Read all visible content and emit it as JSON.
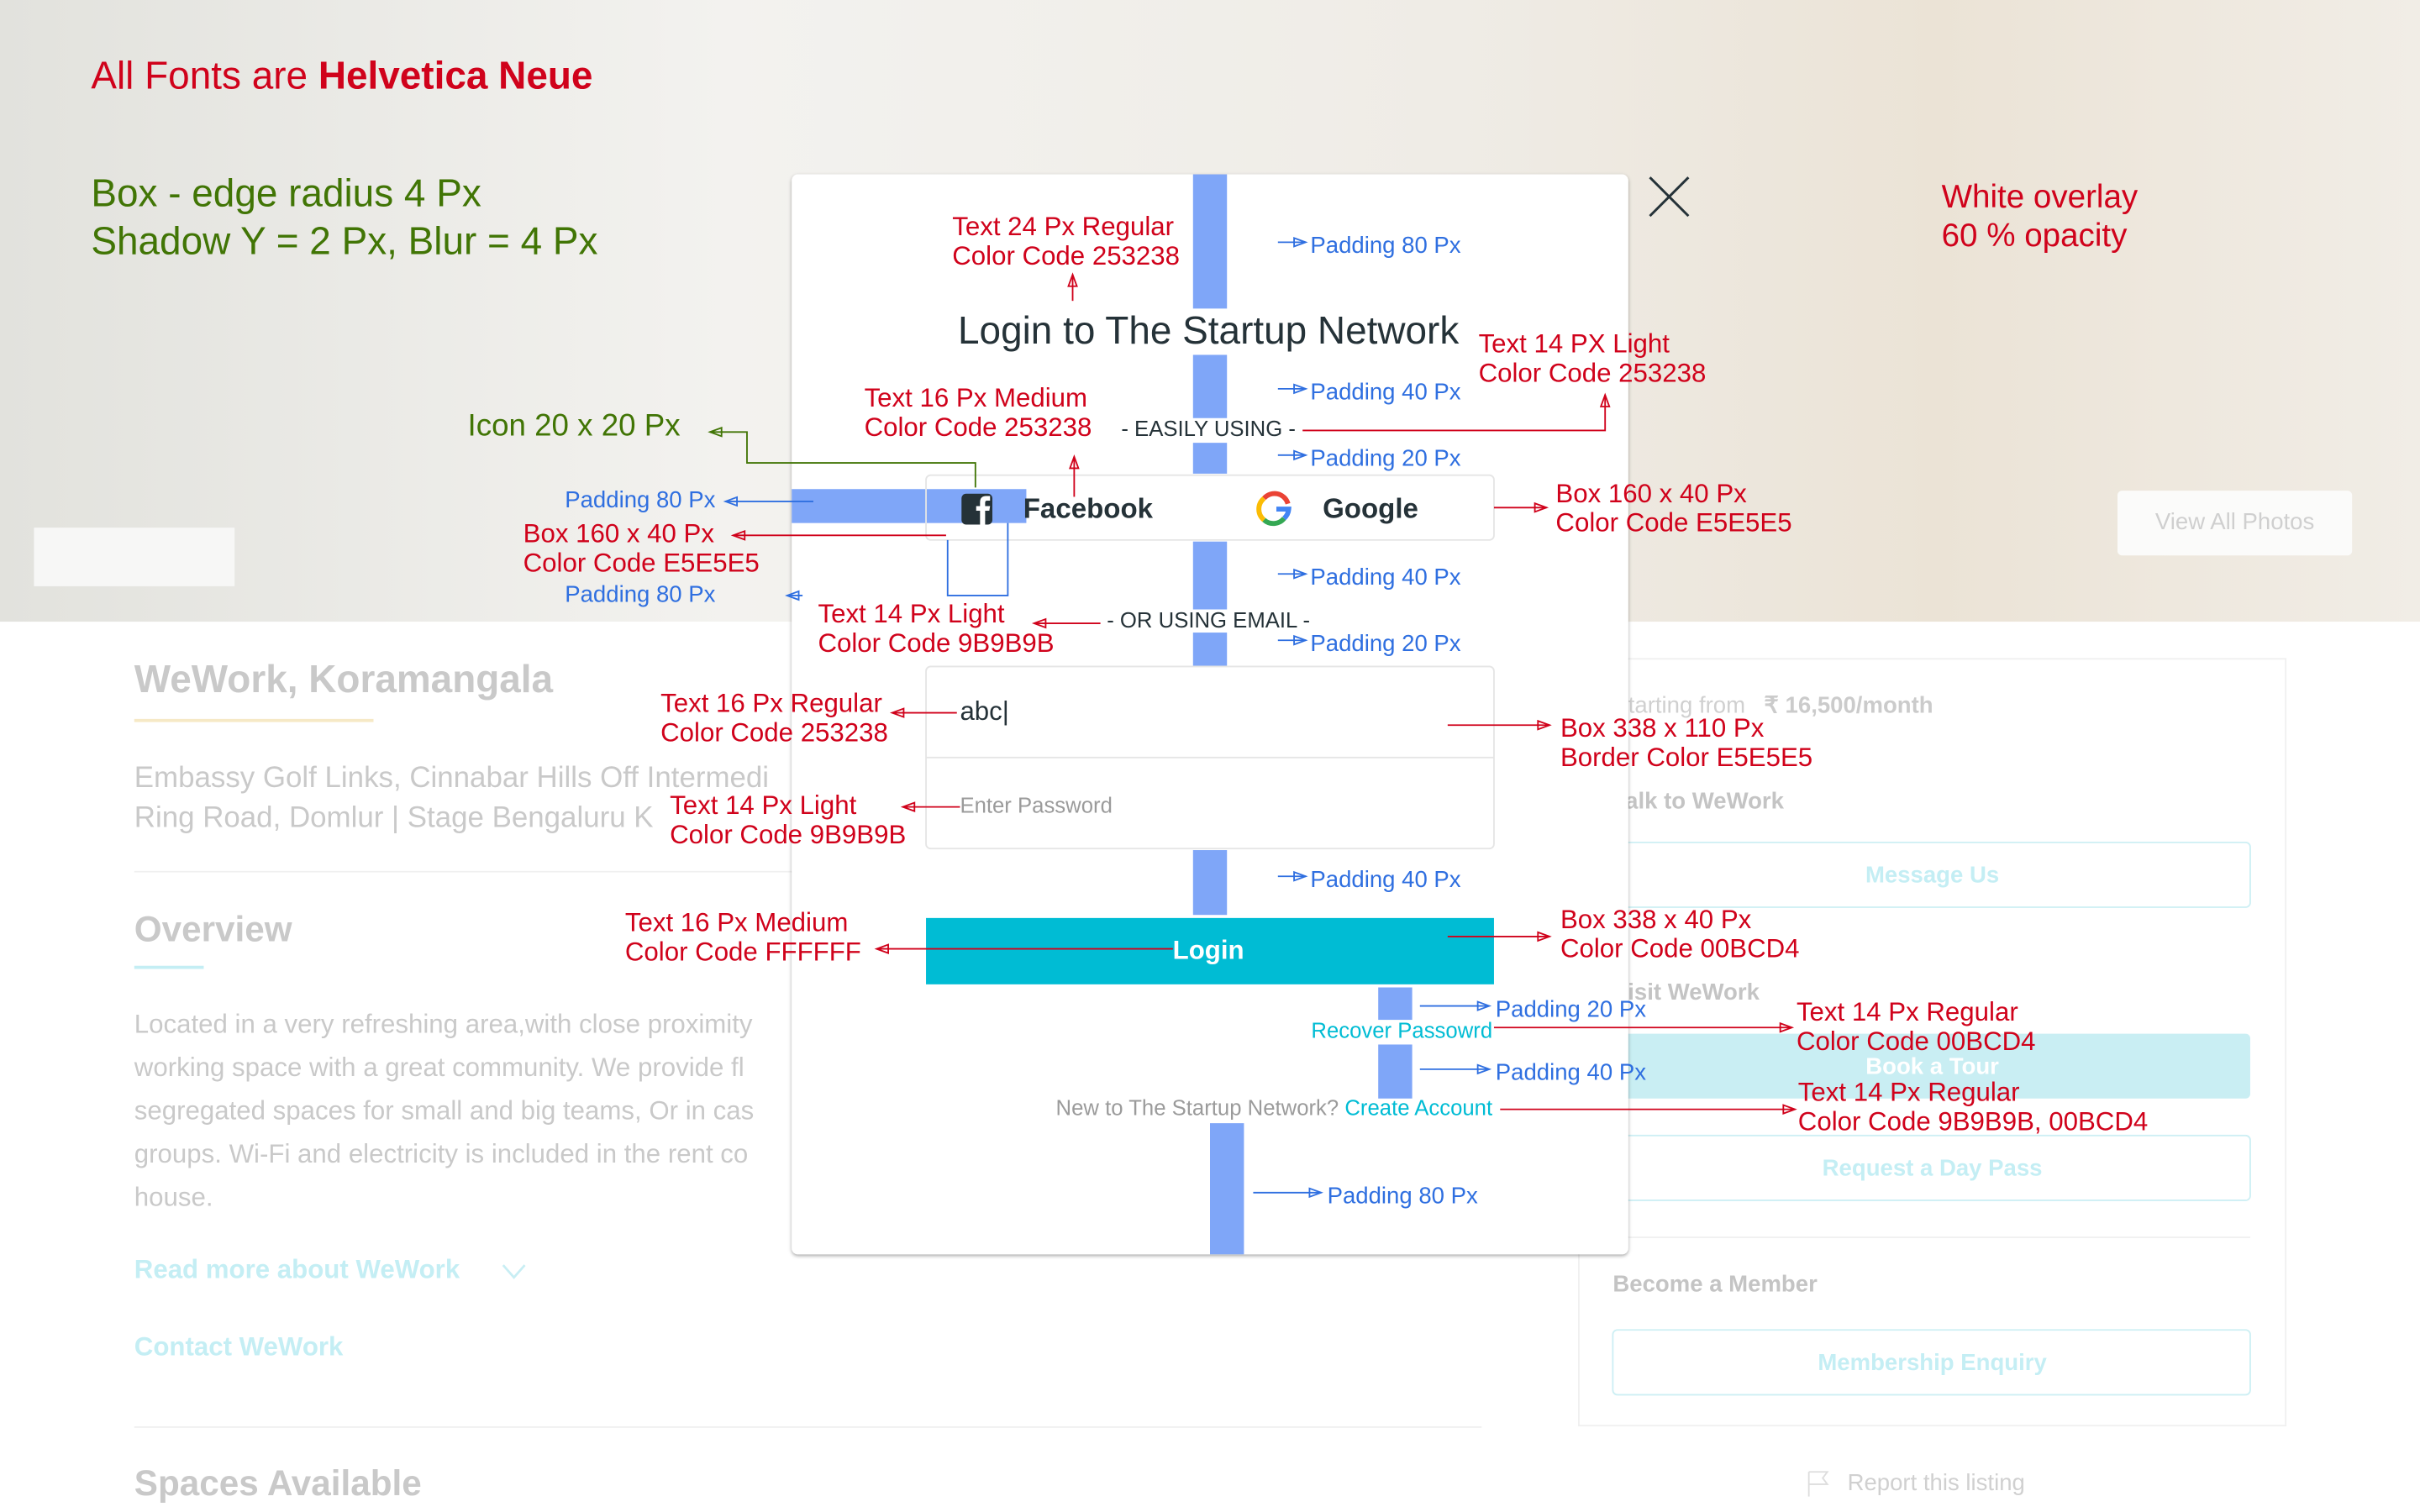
{
  "header": {
    "fonts_prefix": "All Fonts are ",
    "fonts_name": "Helvetica Neue",
    "box_note": "Box - edge radius 4 Px",
    "shadow_note": "Shadow  Y = 2 Px, Blur = 4 Px",
    "overlay_note": [
      "White overlay",
      "60 % opacity"
    ],
    "view_photos": "View All Photos"
  },
  "listing": {
    "name": "WeWork, Koramangala",
    "address": [
      "Embassy Golf Links, Cinnabar Hills Off Intermedi",
      "Ring Road, Domlur | Stage Bengaluru K"
    ],
    "overview_title": "Overview",
    "overview": [
      "Located in a very refreshing area,with close proximity",
      "working space with a great community. We provide fl",
      "segregated spaces for small and big teams, Or in cas",
      "groups. Wi-Fi and electricity is included in the rent co",
      "house."
    ],
    "read_more": "Read more about WeWork",
    "contact": "Contact WeWork",
    "spaces": "Spaces Available"
  },
  "sidebar": {
    "starting_from": "Starting from",
    "price": "₹ 16,500/month",
    "talk": "Talk to WeWork",
    "message": "Message Us",
    "visit": "Visit WeWork",
    "tour": "Book a Tour",
    "day_pass": "Request a Day Pass",
    "member": "Become a Member",
    "enquiry": "Membership Enquiry",
    "report": "Report this listing"
  },
  "modal": {
    "title": "Login to The Startup Network",
    "easily": "- EASILY USING -",
    "facebook": "Facebook",
    "google": "Google",
    "or_email": "- OR USING EMAIL -",
    "email_value": "abc|",
    "password_placeholder": "Enter Password",
    "login": "Login",
    "recover": "Recover Passowrd",
    "new_prompt": "New to The Startup Network? ",
    "create": "Create Account"
  },
  "notes": [
    {
      "lines": [
        "Text 24 Px Regular",
        "Color Code 253238"
      ]
    },
    {
      "lines": [
        "Text 14 PX Light",
        "Color Code 253238"
      ]
    },
    {
      "lines": [
        "Text 16 Px Medium",
        "Color Code 253238"
      ]
    },
    {
      "lines": [
        "Box 160 x 40 Px",
        "Color Code E5E5E5"
      ]
    },
    {
      "lines": [
        "Text 14 Px Light",
        "Color Code 9B9B9B"
      ]
    },
    {
      "lines": [
        "Text 16 Px Regular",
        "Color Code 253238"
      ]
    },
    {
      "lines": [
        "Box 160 x 40 Px",
        "Color Code E5E5E5"
      ]
    },
    {
      "lines": [
        "Box 338 x 110 Px",
        "Border Color E5E5E5"
      ]
    },
    {
      "lines": [
        "Text 14 Px Light",
        "Color Code 9B9B9B"
      ]
    },
    {
      "lines": [
        "Text 16 Px Medium",
        "Color Code FFFFFF"
      ]
    },
    {
      "lines": [
        "Box 338 x 40 Px",
        "Color Code 00BCD4"
      ]
    },
    {
      "lines": [
        "Text 14 Px Regular",
        "Color Code 00BCD4"
      ]
    },
    {
      "lines": [
        "Text 14 Px Regular",
        "Color Code 9B9B9B, 00BCD4"
      ]
    }
  ],
  "icon_note": "Icon 20 x 20 Px",
  "paddings": [
    "Padding 80 Px",
    "Padding 40 Px",
    "Padding 20 Px",
    "Padding 80 Px",
    "Padding 80 Px",
    "Padding 40 Px",
    "Padding 20 Px",
    "Padding 40 Px",
    "Padding 20 Px",
    "Padding 40 Px",
    "Padding 80 Px"
  ]
}
